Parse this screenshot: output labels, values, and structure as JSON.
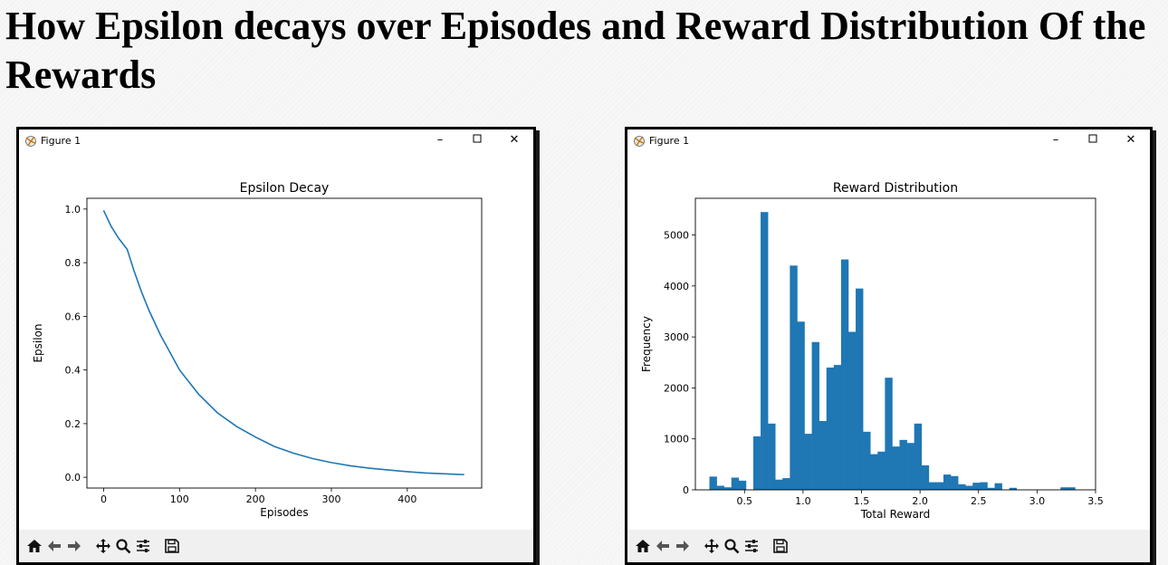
{
  "page_title": "How Epsilon decays over Episodes and Reward Distribution Of the Rewards",
  "windows": [
    {
      "title": "Figure 1",
      "controls": [
        "minimize-icon",
        "maximize-icon",
        "close-icon"
      ]
    },
    {
      "title": "Figure 1",
      "controls": [
        "minimize-icon",
        "maximize-icon",
        "close-icon"
      ]
    }
  ],
  "toolbar_icons": [
    "home-icon",
    "back-arrow-icon",
    "forward-arrow-icon",
    "pan-icon",
    "zoom-icon",
    "configure-subplots-icon",
    "save-icon"
  ],
  "colors": {
    "series": "#1f77b4",
    "toolbar_bg": "#f0f0f0",
    "window_bg": "#ffffff"
  },
  "chart_data": [
    {
      "type": "line",
      "title": "Epsilon Decay",
      "xlabel": "Episodes",
      "ylabel": "Epsilon",
      "xlim": [
        -22,
        498
      ],
      "ylim": [
        -0.04,
        1.04
      ],
      "xticks": [
        0,
        100,
        200,
        300,
        400
      ],
      "yticks": [
        0.0,
        0.2,
        0.4,
        0.6,
        0.8,
        1.0
      ],
      "ytick_labels": [
        "0.0",
        "0.2",
        "0.4",
        "0.6",
        "0.8",
        "1.0"
      ],
      "grid": false,
      "legend": "none",
      "series": [
        {
          "x": [
            0,
            10,
            20,
            31,
            40,
            50,
            60,
            75,
            100,
            125,
            150,
            175,
            200,
            225,
            250,
            275,
            300,
            325,
            350,
            375,
            400,
            425,
            450,
            475
          ],
          "values": [
            0.995,
            0.935,
            0.89,
            0.85,
            0.77,
            0.69,
            0.62,
            0.53,
            0.4,
            0.31,
            0.24,
            0.19,
            0.15,
            0.115,
            0.09,
            0.07,
            0.055,
            0.043,
            0.034,
            0.027,
            0.021,
            0.016,
            0.013,
            0.01
          ]
        }
      ]
    },
    {
      "type": "bar",
      "subtype": "histogram",
      "title": "Reward Distribution",
      "xlabel": "Total Reward",
      "ylabel": "Frequency",
      "xlim": [
        0.08,
        3.5
      ],
      "ylim": [
        0,
        5720
      ],
      "xticks": [
        0.5,
        1.0,
        1.5,
        2.0,
        2.5,
        3.0,
        3.5
      ],
      "xtick_labels": [
        "0.5",
        "1.0",
        "1.5",
        "2.0",
        "2.5",
        "3.0",
        "3.5"
      ],
      "yticks": [
        0,
        1000,
        2000,
        3000,
        4000,
        5000
      ],
      "grid": false,
      "legend": "none",
      "bin_start": 0.2,
      "bin_width": 0.0625,
      "values": [
        260,
        80,
        50,
        240,
        180,
        0,
        1050,
        5450,
        1300,
        200,
        230,
        4400,
        3300,
        1100,
        2900,
        1350,
        2400,
        2450,
        4520,
        3100,
        3950,
        1140,
        700,
        750,
        2200,
        850,
        980,
        920,
        1300,
        480,
        150,
        150,
        300,
        270,
        110,
        80,
        140,
        150,
        40,
        130,
        0,
        40,
        0,
        0,
        0,
        0,
        0,
        0,
        50,
        50
      ]
    }
  ]
}
